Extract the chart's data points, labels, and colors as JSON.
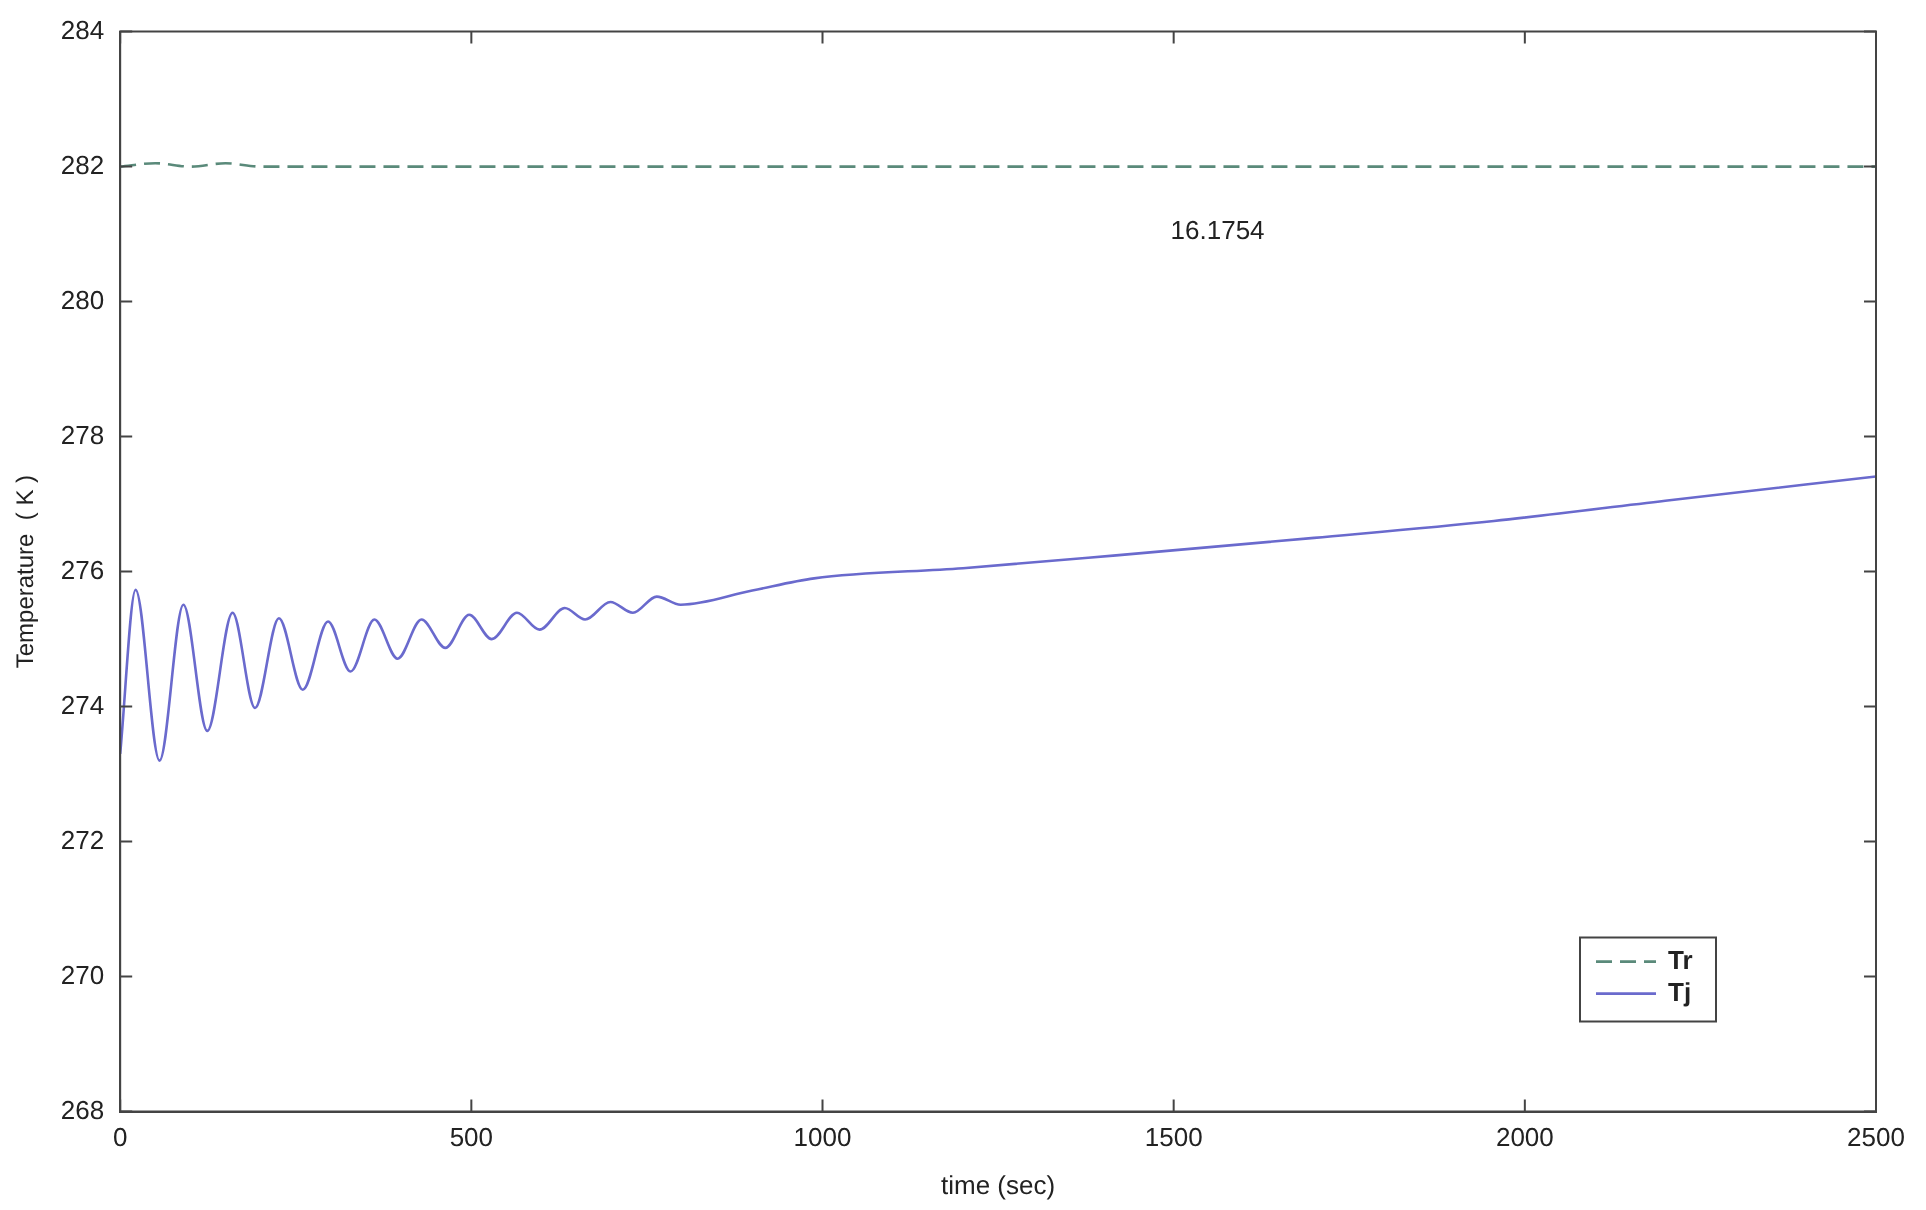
{
  "chart_data": {
    "type": "line",
    "xlabel": "time (sec)",
    "ylabel": "Temperature  ( K )",
    "annotations": [
      "16.1754"
    ],
    "xlim": [
      0,
      2500
    ],
    "xticks": [
      0,
      500,
      1000,
      1500,
      2000,
      2500
    ],
    "ylim": [
      268,
      284
    ],
    "yticks": [
      268,
      270,
      272,
      274,
      276,
      278,
      280,
      282,
      284
    ],
    "grid": false,
    "legend": "bottom right",
    "marker": "none",
    "series": [
      {
        "name": "Tr",
        "color": "#5a8a7a",
        "line_style": "dashed",
        "x": [
          0,
          50,
          100,
          150,
          200,
          300,
          400,
          500,
          600,
          2500
        ],
        "values": [
          282,
          282.05,
          282,
          282.05,
          282,
          282,
          282,
          282,
          282,
          282
        ]
      },
      {
        "name": "Tj",
        "color": "#6a6acd",
        "line_style": "solid",
        "x": [
          0,
          22,
          56,
          90,
          124,
          160,
          192,
          226,
          260,
          296,
          328,
          362,
          395,
          429,
          463,
          497,
          529,
          565,
          597,
          633,
          662,
          698,
          730,
          764,
          798,
          900,
          988,
          1200,
          1418,
          1700,
          1956,
          2200,
          2500
        ],
        "values": [
          273.3,
          275.73,
          273.2,
          275.51,
          273.64,
          275.39,
          273.98,
          275.31,
          274.25,
          275.26,
          274.52,
          275.29,
          274.71,
          275.29,
          274.87,
          275.36,
          275.0,
          275.39,
          275.14,
          275.46,
          275.29,
          275.55,
          275.39,
          275.63,
          275.51,
          275.72,
          275.9,
          276.05,
          276.24,
          276.5,
          276.75,
          277.05,
          277.41
        ]
      }
    ]
  }
}
